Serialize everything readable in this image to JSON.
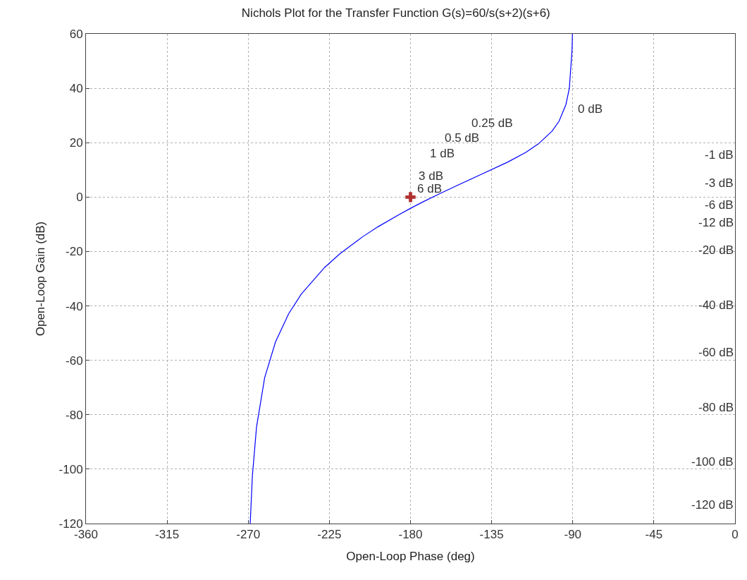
{
  "chart_data": {
    "type": "line",
    "title": "Nichols Plot for the Transfer Function G(s)=60/s(s+2)(s+6)",
    "xlabel": "Open-Loop Phase (deg)",
    "ylabel": "Open-Loop Gain (dB)",
    "xlim": [
      -360,
      0
    ],
    "xticks": [
      -360,
      -315,
      -270,
      -225,
      -180,
      -135,
      -90,
      -45,
      0
    ],
    "ylim": [
      -120,
      60
    ],
    "yticks": [
      -120,
      -100,
      -80,
      -60,
      -40,
      -20,
      0,
      20,
      40,
      60
    ],
    "grid": true,
    "series": [
      {
        "color": "#0000ff",
        "marker": "none",
        "line_style": "solid",
        "x": [
          -90.2,
          -90.4,
          -91.9,
          -93.8,
          -97.6,
          -101.4,
          -108.8,
          -115.9,
          -126.0,
          -140.9,
          -153.4,
          -164.0,
          -172.9,
          -179.9,
          -187.1,
          -198.0,
          -206.6,
          -219.1,
          -227.7,
          -240.6,
          -247.6,
          -254.9,
          -260.9,
          -265.4,
          -267.7,
          -268.9
        ],
        "values": [
          60,
          54,
          40,
          34,
          27.9,
          24.3,
          19.7,
          16.5,
          12.9,
          8.3,
          4.5,
          1.2,
          -1.7,
          -4.1,
          -6.7,
          -10.9,
          -14.6,
          -20.8,
          -25.9,
          -35.7,
          -42.9,
          -53.3,
          -66.4,
          -84.5,
          -102.5,
          -120
        ]
      },
      {
        "type": "scatter",
        "color": "#b03030",
        "marker": "cross",
        "x": [
          -180
        ],
        "values": [
          0
        ]
      }
    ],
    "annotations": [
      "0 dB",
      "0.25 dB",
      "0.5 dB",
      "1 dB",
      "3 dB",
      "6 dB",
      "-1 dB",
      "-3 dB",
      "-6 dB",
      "-12 dB",
      "-20 dB",
      "-40 dB",
      "-60 dB",
      "-80 dB",
      "-100 dB",
      "-120 dB"
    ]
  }
}
